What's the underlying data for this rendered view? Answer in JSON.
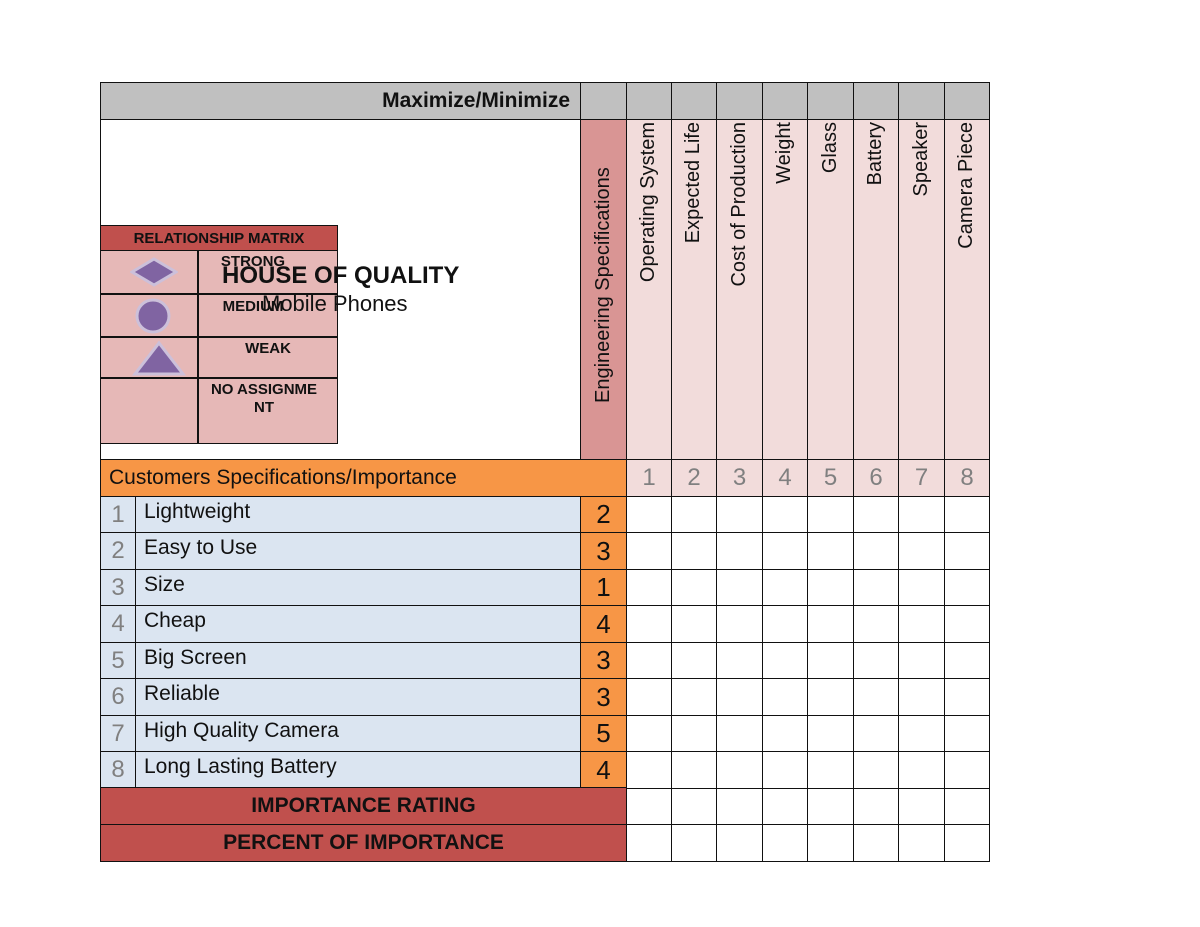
{
  "header": {
    "maximize_minimize": "Maximize/Minimize"
  },
  "title": {
    "main": "HOUSE OF QUALITY",
    "subtitle": "Mobile Phones"
  },
  "legend": {
    "title": "RELATIONSHIP MATRIX",
    "items": [
      {
        "symbol": "diamond-icon",
        "label": "STRONG"
      },
      {
        "symbol": "circle-icon",
        "label": "MEDIUM"
      },
      {
        "symbol": "triangle-icon",
        "label": "WEAK"
      },
      {
        "symbol": "none",
        "label": "NO ASSIGNMENT"
      }
    ]
  },
  "engineering": {
    "header": "Engineering Specifications",
    "specs": [
      {
        "num": "1",
        "label": "Operating System"
      },
      {
        "num": "2",
        "label": "Expected Life"
      },
      {
        "num": "3",
        "label": "Cost of Production"
      },
      {
        "num": "4",
        "label": "Weight"
      },
      {
        "num": "5",
        "label": "Glass"
      },
      {
        "num": "6",
        "label": "Battery"
      },
      {
        "num": "7",
        "label": "Speaker"
      },
      {
        "num": "8",
        "label": "Camera Piece"
      }
    ]
  },
  "customers": {
    "header": "Customers Specifications/Importance",
    "requirements": [
      {
        "num": "1",
        "label": "Lightweight",
        "importance": "2"
      },
      {
        "num": "2",
        "label": "Easy to Use",
        "importance": "3"
      },
      {
        "num": "3",
        "label": "Size",
        "importance": "1"
      },
      {
        "num": "4",
        "label": "Cheap",
        "importance": "4"
      },
      {
        "num": "5",
        "label": "Big Screen",
        "importance": "3"
      },
      {
        "num": "6",
        "label": "Reliable",
        "importance": "3"
      },
      {
        "num": "7",
        "label": "High Quality Camera",
        "importance": "5"
      },
      {
        "num": "8",
        "label": "Long Lasting Battery",
        "importance": "4"
      }
    ]
  },
  "footer": {
    "importance_rating": "IMPORTANCE RATING",
    "percent_of_importance": "PERCENT OF IMPORTANCE"
  },
  "colors": {
    "header_gray": "#c0c0c0",
    "spec_pink": "#f2dcdb",
    "eng_header_pink": "#d99594",
    "orange": "#f79646",
    "requirement_blue": "#dbe5f1",
    "footer_red": "#c0504d",
    "symbol_purple": "#8064a2"
  }
}
